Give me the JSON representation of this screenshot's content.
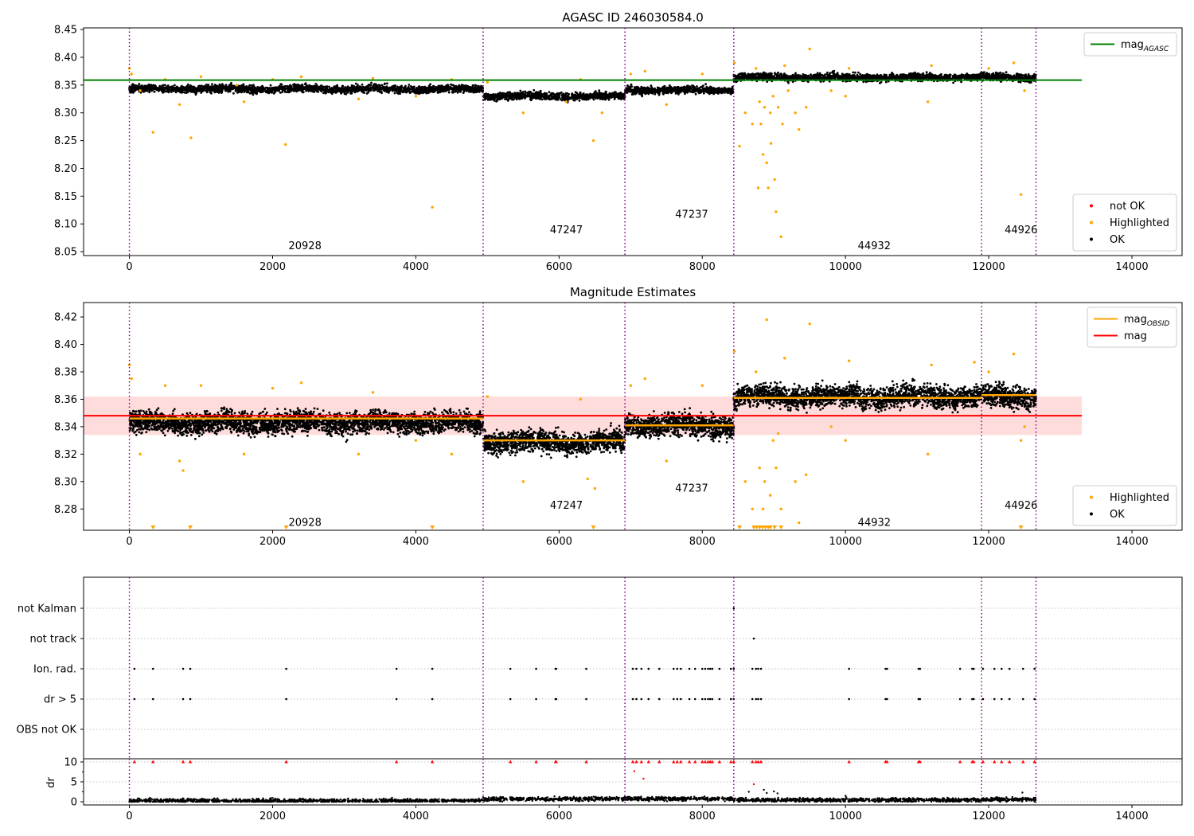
{
  "colors": {
    "ok": "#000000",
    "highlighted": "#ffa500",
    "not_ok": "#ff0000",
    "agasc_line": "#008000",
    "obsid_line": "#ffa500",
    "mag_line": "#ff0000",
    "mag_band": "#ffc0c0",
    "obsid_boundary": "#800080",
    "grid": "#b0b0b0"
  },
  "chart_data": [
    {
      "id": "top",
      "type": "scatter",
      "title": "AGASC ID 246030584.0",
      "xlim": [
        -640,
        14700
      ],
      "ylim": [
        8.043,
        8.453
      ],
      "xticks": [
        "0",
        "2000",
        "4000",
        "6000",
        "8000",
        "10000",
        "12000",
        "14000"
      ],
      "yticks": [
        "8.05",
        "8.10",
        "8.15",
        "8.20",
        "8.25",
        "8.30",
        "8.35",
        "8.40",
        "8.45"
      ],
      "hlines": [
        {
          "name": "mag_agasc",
          "y": 8.359,
          "x": [
            -640,
            13300
          ]
        }
      ],
      "segment_levels": [
        8.343,
        8.33,
        8.341,
        8.364,
        8.364
      ],
      "segment_spread": 0.006,
      "highlighted_points": [
        [
          0,
          8.38
        ],
        [
          30,
          8.37
        ],
        [
          150,
          8.34
        ],
        [
          330,
          8.265
        ],
        [
          500,
          8.36
        ],
        [
          700,
          8.315
        ],
        [
          860,
          8.255
        ],
        [
          1000,
          8.365
        ],
        [
          1500,
          8.35
        ],
        [
          1600,
          8.32
        ],
        [
          2000,
          8.36
        ],
        [
          2180,
          8.243
        ],
        [
          2400,
          8.365
        ],
        [
          3200,
          8.325
        ],
        [
          3400,
          8.362
        ],
        [
          4000,
          8.33
        ],
        [
          4230,
          8.13
        ],
        [
          4500,
          8.36
        ],
        [
          5000,
          8.355
        ],
        [
          5500,
          8.3
        ],
        [
          6100,
          8.32
        ],
        [
          6300,
          8.36
        ],
        [
          6480,
          8.25
        ],
        [
          6600,
          8.3
        ],
        [
          7000,
          8.37
        ],
        [
          7200,
          8.375
        ],
        [
          7500,
          8.315
        ],
        [
          8000,
          8.37
        ],
        [
          8450,
          8.39
        ],
        [
          8520,
          8.24
        ],
        [
          8600,
          8.3
        ],
        [
          8700,
          8.28
        ],
        [
          8750,
          8.38
        ],
        [
          8780,
          8.165
        ],
        [
          8800,
          8.32
        ],
        [
          8820,
          8.28
        ],
        [
          8850,
          8.225
        ],
        [
          8870,
          8.31
        ],
        [
          8900,
          8.21
        ],
        [
          8920,
          8.165
        ],
        [
          8950,
          8.3
        ],
        [
          8960,
          8.245
        ],
        [
          8990,
          8.33
        ],
        [
          9010,
          8.18
        ],
        [
          9030,
          8.122
        ],
        [
          9060,
          8.31
        ],
        [
          9100,
          8.077
        ],
        [
          9120,
          8.28
        ],
        [
          9150,
          8.385
        ],
        [
          9200,
          8.34
        ],
        [
          9300,
          8.3
        ],
        [
          9350,
          8.27
        ],
        [
          9450,
          8.31
        ],
        [
          9500,
          8.415
        ],
        [
          9800,
          8.34
        ],
        [
          10000,
          8.33
        ],
        [
          10050,
          8.38
        ],
        [
          11150,
          8.32
        ],
        [
          11200,
          8.385
        ],
        [
          12000,
          8.38
        ],
        [
          12350,
          8.39
        ],
        [
          12450,
          8.153
        ],
        [
          12500,
          8.34
        ]
      ],
      "annotations": [
        {
          "label": "20928",
          "x": 2000,
          "y": 8.06
        },
        {
          "label": "47247",
          "x": 5650,
          "y": 8.089
        },
        {
          "label": "47237",
          "x": 7400,
          "y": 8.117
        },
        {
          "label": "44932",
          "x": 9950,
          "y": 8.06
        },
        {
          "label": "44926",
          "x": 12000,
          "y": 8.089
        }
      ],
      "legends": [
        {
          "position": "upper right",
          "entries": [
            {
              "kind": "line",
              "color": "agasc_line",
              "label": "mag",
              "sub": "AGASC"
            }
          ]
        },
        {
          "position": "lower right",
          "entries": [
            {
              "kind": "dot",
              "color": "not_ok",
              "label": "not OK"
            },
            {
              "kind": "dot",
              "color": "highlighted",
              "label": "Highlighted"
            },
            {
              "kind": "dot",
              "color": "ok",
              "label": "OK"
            }
          ]
        }
      ]
    },
    {
      "id": "mid",
      "type": "scatter",
      "title": "Magnitude Estimates",
      "xlim": [
        -640,
        14700
      ],
      "ylim": [
        8.2645,
        8.4305
      ],
      "xticks": [
        "0",
        "2000",
        "4000",
        "6000",
        "8000",
        "10000",
        "12000",
        "14000"
      ],
      "yticks": [
        "8.28",
        "8.30",
        "8.32",
        "8.34",
        "8.36",
        "8.38",
        "8.40",
        "8.42"
      ],
      "band": {
        "y": [
          8.334,
          8.362
        ],
        "x": [
          -640,
          13300
        ]
      },
      "hlines": [
        {
          "name": "mag",
          "y": 8.348,
          "x": [
            -640,
            13300
          ]
        }
      ],
      "obsid_mags": [
        {
          "x": [
            0,
            4940
          ],
          "y": 8.346
        },
        {
          "x": [
            4940,
            6920
          ],
          "y": 8.33
        },
        {
          "x": [
            6920,
            8440
          ],
          "y": 8.341
        },
        {
          "x": [
            8440,
            11900
          ],
          "y": 8.361
        },
        {
          "x": [
            11900,
            12660
          ],
          "y": 8.363
        }
      ],
      "segment_levels": [
        8.343,
        8.329,
        8.341,
        8.362,
        8.362
      ],
      "segment_spread": 0.007,
      "highlighted_points": [
        [
          0,
          8.385
        ],
        [
          30,
          8.375
        ],
        [
          150,
          8.32
        ],
        [
          500,
          8.37
        ],
        [
          700,
          8.315
        ],
        [
          750,
          8.308
        ],
        [
          1000,
          8.37
        ],
        [
          1600,
          8.32
        ],
        [
          2000,
          8.368
        ],
        [
          2400,
          8.372
        ],
        [
          3200,
          8.32
        ],
        [
          3400,
          8.365
        ],
        [
          4000,
          8.33
        ],
        [
          4500,
          8.32
        ],
        [
          5000,
          8.362
        ],
        [
          5500,
          8.3
        ],
        [
          6300,
          8.36
        ],
        [
          6400,
          8.302
        ],
        [
          6500,
          8.295
        ],
        [
          7000,
          8.37
        ],
        [
          7200,
          8.375
        ],
        [
          7500,
          8.315
        ],
        [
          8000,
          8.37
        ],
        [
          8450,
          8.395
        ],
        [
          8600,
          8.3
        ],
        [
          8700,
          8.28
        ],
        [
          8750,
          8.38
        ],
        [
          8800,
          8.31
        ],
        [
          8850,
          8.28
        ],
        [
          8870,
          8.3
        ],
        [
          8900,
          8.418
        ],
        [
          8950,
          8.29
        ],
        [
          8990,
          8.33
        ],
        [
          9030,
          8.31
        ],
        [
          9060,
          8.335
        ],
        [
          9100,
          8.28
        ],
        [
          9150,
          8.39
        ],
        [
          9300,
          8.3
        ],
        [
          9350,
          8.27
        ],
        [
          9450,
          8.305
        ],
        [
          9500,
          8.415
        ],
        [
          9800,
          8.34
        ],
        [
          10000,
          8.33
        ],
        [
          10050,
          8.388
        ],
        [
          11150,
          8.32
        ],
        [
          11200,
          8.385
        ],
        [
          11800,
          8.387
        ],
        [
          12000,
          8.38
        ],
        [
          12350,
          8.393
        ],
        [
          12450,
          8.33
        ],
        [
          12500,
          8.34
        ]
      ],
      "below_range_markers": [
        330,
        850,
        2190,
        4230,
        6480,
        8520,
        8720,
        8760,
        8800,
        8840,
        8880,
        8920,
        8950,
        9010,
        9100,
        12450
      ],
      "annotations": [
        {
          "label": "20928",
          "x": 2000,
          "y": 8.27
        },
        {
          "label": "47247",
          "x": 5650,
          "y": 8.2825
        },
        {
          "label": "47237",
          "x": 7400,
          "y": 8.295
        },
        {
          "label": "44932",
          "x": 9950,
          "y": 8.27
        },
        {
          "label": "44926",
          "x": 12000,
          "y": 8.2825
        }
      ],
      "legends": [
        {
          "position": "upper right",
          "entries": [
            {
              "kind": "line",
              "color": "obsid_line",
              "label": "mag",
              "sub": "OBSID"
            },
            {
              "kind": "line",
              "color": "mag_line",
              "label": "mag",
              "sub": ""
            }
          ]
        },
        {
          "position": "lower right",
          "entries": [
            {
              "kind": "dot",
              "color": "highlighted",
              "label": "Highlighted"
            },
            {
              "kind": "dot",
              "color": "ok",
              "label": "OK"
            }
          ]
        }
      ]
    },
    {
      "id": "flags",
      "type": "scatter",
      "xlim": [
        -640,
        14700
      ],
      "categories": [
        "not Kalman",
        "not track",
        "Ion. rad.",
        "dr > 5",
        "OBS not OK"
      ],
      "flag_points": {
        "not Kalman": [
          8440
        ],
        "not track": [
          8720
        ],
        "Ion. rad.": [
          70,
          330,
          750,
          850,
          2190,
          3730,
          4230,
          5320,
          5680,
          5950,
          5960,
          6380,
          7030,
          7080,
          7150,
          7250,
          7400,
          7600,
          7650,
          7700,
          7820,
          7900,
          8000,
          8040,
          8080,
          8110,
          8140,
          8240,
          8400,
          8440,
          8700,
          8750,
          8780,
          8820,
          10050,
          10560,
          10580,
          11020,
          11040,
          11600,
          11770,
          11790,
          11920,
          12080,
          12180,
          12290,
          12480,
          12640
        ],
        "dr > 5": [
          70,
          330,
          750,
          850,
          2190,
          3730,
          4230,
          5320,
          5680,
          5950,
          5960,
          6380,
          7030,
          7080,
          7150,
          7250,
          7400,
          7600,
          7650,
          7700,
          7820,
          7900,
          8000,
          8040,
          8080,
          8110,
          8140,
          8240,
          8400,
          8440,
          8700,
          8750,
          8780,
          8820,
          10050,
          10560,
          10580,
          11020,
          11040,
          11600,
          11770,
          11790,
          11920,
          12080,
          12180,
          12290,
          12480,
          12640
        ],
        "OBS not OK": []
      }
    },
    {
      "id": "dr",
      "type": "scatter",
      "ylabel": "dr",
      "xlim": [
        -640,
        14700
      ],
      "ylim": [
        -0.8,
        10.8
      ],
      "xticks": [
        "0",
        "2000",
        "4000",
        "6000",
        "8000",
        "10000",
        "12000",
        "14000"
      ],
      "yticks": [
        "0",
        "5",
        "10"
      ],
      "clip_level": 10,
      "clipped_points": [
        70,
        330,
        750,
        850,
        2190,
        3730,
        4230,
        5320,
        5680,
        5950,
        5960,
        6380,
        7030,
        7080,
        7150,
        7250,
        7400,
        7600,
        7650,
        7700,
        7820,
        7900,
        8000,
        8040,
        8080,
        8110,
        8140,
        8240,
        8400,
        8440,
        8700,
        8750,
        8780,
        8820,
        10050,
        10560,
        10580,
        11020,
        11040,
        11600,
        11770,
        11790,
        11920,
        12080,
        12180,
        12290,
        12480,
        12640
      ],
      "red_points": [
        [
          7050,
          7.7
        ],
        [
          7180,
          5.8
        ],
        [
          8720,
          4.4
        ]
      ],
      "scattered_points": [
        [
          8650,
          2.5
        ],
        [
          8860,
          3.0
        ],
        [
          8900,
          2.2
        ],
        [
          9000,
          2.6
        ],
        [
          9050,
          2.1
        ],
        [
          12470,
          2.3
        ],
        [
          10000,
          1.5
        ]
      ],
      "segment_base": [
        0.25,
        0.7,
        0.75,
        0.45,
        0.6
      ]
    }
  ],
  "obsid_boundaries": [
    0,
    4940,
    6920,
    8440,
    11900,
    12660
  ],
  "obsid_labels": [
    "20928",
    "47247",
    "47237",
    "44932",
    "44926"
  ]
}
